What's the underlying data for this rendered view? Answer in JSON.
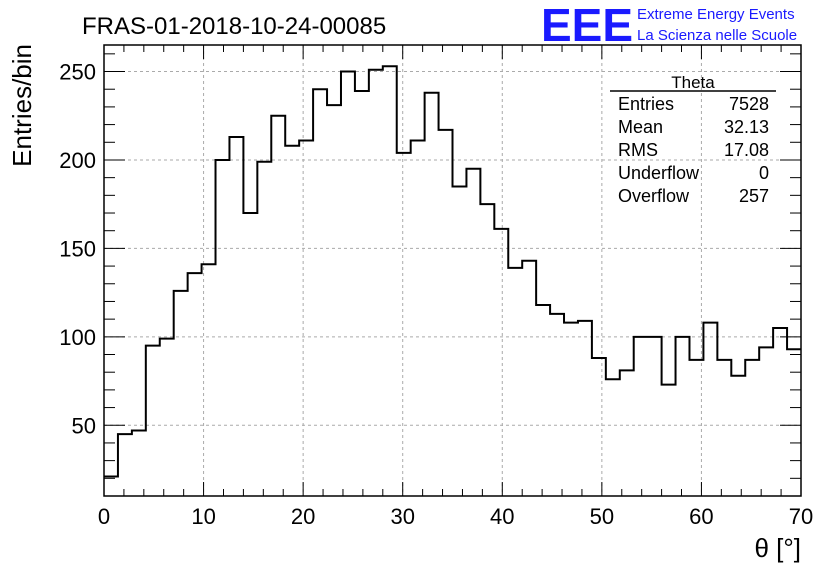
{
  "header": {
    "title": "FRAS-01-2018-10-24-00085",
    "logo_text": "EEE",
    "logo_line1": "Extreme Energy Events",
    "logo_line2": "La Scienza nelle Scuole",
    "logo_color": "#1a1aff"
  },
  "stats": {
    "name": "Theta",
    "rows": [
      {
        "label": "Entries",
        "value": "7528"
      },
      {
        "label": "Mean",
        "value": "32.13"
      },
      {
        "label": "RMS",
        "value": "17.08"
      },
      {
        "label": "Underflow",
        "value": "0"
      },
      {
        "label": "Overflow",
        "value": "257"
      }
    ]
  },
  "chart_data": {
    "type": "histogram",
    "title": "FRAS-01-2018-10-24-00085",
    "xlabel": "θ [°]",
    "ylabel": "Entries/bin",
    "xlim": [
      0,
      70
    ],
    "ylim": [
      10,
      265
    ],
    "grid": true,
    "bin_width": 1.4,
    "x_ticks": [
      0,
      10,
      20,
      30,
      40,
      50,
      60,
      70
    ],
    "y_ticks": [
      50,
      100,
      150,
      200,
      250
    ],
    "bin_edges_start": 0,
    "values": [
      21,
      45,
      47,
      95,
      99,
      126,
      136,
      141,
      200,
      213,
      170,
      199,
      225,
      208,
      211,
      240,
      231,
      250,
      239,
      251,
      253,
      204,
      211,
      238,
      217,
      185,
      195,
      175,
      161,
      139,
      143,
      118,
      113,
      108,
      109,
      88,
      76,
      81,
      100,
      100,
      73,
      100,
      87,
      108,
      87,
      78,
      87,
      94,
      105,
      93
    ],
    "line_color": "#000000"
  }
}
